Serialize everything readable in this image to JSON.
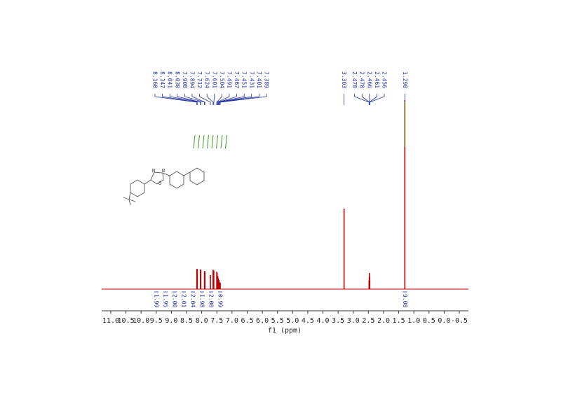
{
  "chart_data": {
    "type": "nmr",
    "xlabel": "f1 (ppm)",
    "xlim": [
      11.3,
      -0.8
    ],
    "xticks": [
      {
        "value": 11,
        "label": "11.0"
      },
      10.5,
      {
        "value": 10,
        "label": "10.0"
      },
      9.5,
      {
        "value": 9,
        "label": "9.0"
      },
      8.5,
      {
        "value": 8,
        "label": "8.0"
      },
      7.5,
      {
        "value": 7,
        "label": "7.0"
      },
      6.5,
      {
        "value": 6,
        "label": "6.0"
      },
      5.5,
      {
        "value": 5,
        "label": "5.0"
      },
      4.5,
      {
        "value": 4,
        "label": "4.0"
      },
      3.5,
      {
        "value": 3,
        "label": "3.0"
      },
      2.5,
      {
        "value": 2,
        "label": "2.0"
      },
      1.5,
      {
        "value": 1,
        "label": "1.0"
      },
      0.5,
      {
        "value": 0,
        "label": "0.0"
      },
      -0.5
    ],
    "ylim": [
      0,
      100
    ],
    "color": "#c00000",
    "integral_color": "#3a9a1a",
    "label_color": "#1f2f9f",
    "peaks": {
      "x": [
        8.16,
        8.147,
        8.041,
        8.03,
        7.908,
        7.894,
        7.712,
        7.624,
        7.601,
        7.504,
        7.491,
        7.467,
        7.451,
        7.431,
        7.401,
        7.389,
        3.303,
        2.478,
        2.47,
        2.466,
        2.461,
        2.456,
        1.298
      ],
      "x_labels": [
        "8.160",
        "8.147",
        "8.041",
        "8.030",
        "7.908",
        "7.894",
        "7.712",
        "7.624",
        "7.601",
        "7.504",
        "7.491",
        "7.467",
        "7.451",
        "7.431",
        "7.401",
        "7.389",
        "3.303",
        "2.478",
        "2.470",
        "2.466",
        "2.461",
        "2.456",
        "1.298"
      ],
      "values": [
        10.7,
        10.5,
        10.4,
        10.2,
        9.6,
        9.4,
        7.4,
        10.3,
        9.8,
        9.2,
        8.6,
        6.8,
        5.6,
        4.8,
        3.6,
        3.2,
        42.6,
        4.5,
        6.5,
        8.5,
        6.5,
        4.5,
        100
      ]
    },
    "integrals": {
      "x": [
        8.15,
        8.04,
        7.9,
        7.71,
        7.61,
        7.5,
        7.46,
        7.4,
        1.298
      ],
      "values": [
        1.99,
        1.95,
        2.0,
        2.01,
        2.04,
        1.98,
        2.0,
        0.99,
        9.08
      ],
      "value_labels": [
        "1.99",
        "1.95",
        "2.00",
        "2.01",
        "2.04",
        "1.98",
        "2.00",
        "0.99",
        "9.08"
      ]
    },
    "structure": {
      "atoms": [
        "N",
        "N",
        "O"
      ]
    }
  }
}
